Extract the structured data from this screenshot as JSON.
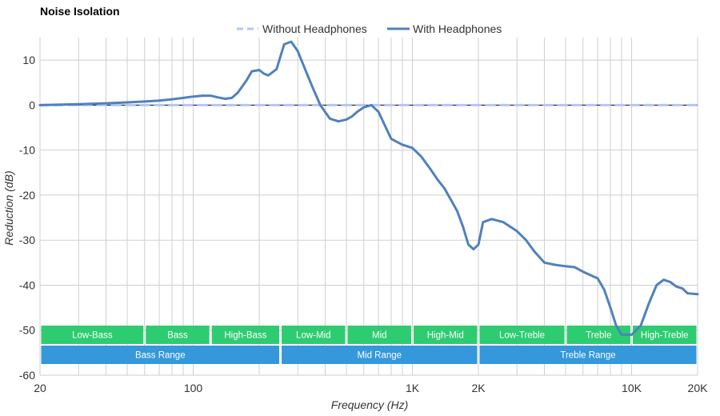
{
  "chart_data": {
    "type": "line",
    "title": "Noise Isolation",
    "xlabel": "Frequency (Hz)",
    "ylabel": "Reduction (dB)",
    "x_scale": "log",
    "xlim": [
      20,
      20000
    ],
    "ylim": [
      -60,
      15
    ],
    "x_ticks": [
      {
        "value": 20,
        "label": "20"
      },
      {
        "value": 100,
        "label": "100"
      },
      {
        "value": 1000,
        "label": "1K"
      },
      {
        "value": 2000,
        "label": "2K"
      },
      {
        "value": 10000,
        "label": "10K"
      },
      {
        "value": 20000,
        "label": "20K"
      }
    ],
    "y_ticks": [
      10,
      0,
      -10,
      -20,
      -30,
      -40,
      -50,
      -60
    ],
    "grid": true,
    "legend_position": "top-center",
    "series": [
      {
        "name": "Without Headphones",
        "style": "dashed",
        "color": "#b3c6f5",
        "x": [
          20,
          20000
        ],
        "y": [
          0,
          0
        ]
      },
      {
        "name": "With Headphones",
        "style": "solid",
        "color": "#4f81bd",
        "x": [
          20,
          25,
          30,
          40,
          50,
          60,
          70,
          80,
          90,
          100,
          110,
          120,
          130,
          140,
          150,
          160,
          175,
          185,
          200,
          210,
          220,
          240,
          260,
          280,
          300,
          330,
          350,
          380,
          420,
          460,
          500,
          530,
          560,
          600,
          650,
          700,
          800,
          900,
          1000,
          1100,
          1200,
          1300,
          1400,
          1600,
          1700,
          1800,
          1900,
          2000,
          2100,
          2300,
          2600,
          3000,
          3300,
          3600,
          4000,
          4500,
          5000,
          5500,
          6000,
          7000,
          7500,
          8000,
          8500,
          9000,
          10000,
          11000,
          12000,
          13000,
          14000,
          15000,
          16000,
          17000,
          18000,
          20000
        ],
        "y": [
          0,
          0.1,
          0.2,
          0.4,
          0.6,
          0.8,
          1.0,
          1.3,
          1.6,
          1.9,
          2.1,
          2.1,
          1.7,
          1.4,
          1.6,
          2.8,
          5.5,
          7.5,
          7.8,
          7.0,
          6.6,
          8.0,
          13.5,
          14.1,
          12.0,
          7.0,
          4.0,
          0.0,
          -3.0,
          -3.6,
          -3.2,
          -2.5,
          -1.5,
          -0.5,
          0.0,
          -1.5,
          -7.5,
          -8.8,
          -9.5,
          -11.5,
          -14.0,
          -16.5,
          -18.5,
          -23.5,
          -27.0,
          -31.0,
          -32.0,
          -31.0,
          -26.0,
          -25.3,
          -26.0,
          -28.0,
          -30.0,
          -32.5,
          -35.0,
          -35.5,
          -35.8,
          -36.0,
          -37.0,
          -38.5,
          -41.0,
          -45.0,
          -49.0,
          -51.0,
          -51.0,
          -49.0,
          -44.0,
          -40.0,
          -38.8,
          -39.3,
          -40.3,
          -40.7,
          -41.8,
          -42.0
        ]
      }
    ],
    "range_bands": {
      "row1_color": "#2ecc71",
      "row2_color": "#3498db",
      "row1": [
        {
          "label": "Low-Bass",
          "from": 20,
          "to": 60
        },
        {
          "label": "Bass",
          "from": 60,
          "to": 120
        },
        {
          "label": "High-Bass",
          "from": 120,
          "to": 250
        },
        {
          "label": "Low-Mid",
          "from": 250,
          "to": 500
        },
        {
          "label": "Mid",
          "from": 500,
          "to": 1000
        },
        {
          "label": "High-Mid",
          "from": 1000,
          "to": 2000
        },
        {
          "label": "Low-Treble",
          "from": 2000,
          "to": 5000
        },
        {
          "label": "Treble",
          "from": 5000,
          "to": 10000
        },
        {
          "label": "High-Treble",
          "from": 10000,
          "to": 20000
        }
      ],
      "row2": [
        {
          "label": "Bass Range",
          "from": 20,
          "to": 250
        },
        {
          "label": "Mid Range",
          "from": 250,
          "to": 2000
        },
        {
          "label": "Treble Range",
          "from": 2000,
          "to": 20000
        }
      ]
    }
  }
}
